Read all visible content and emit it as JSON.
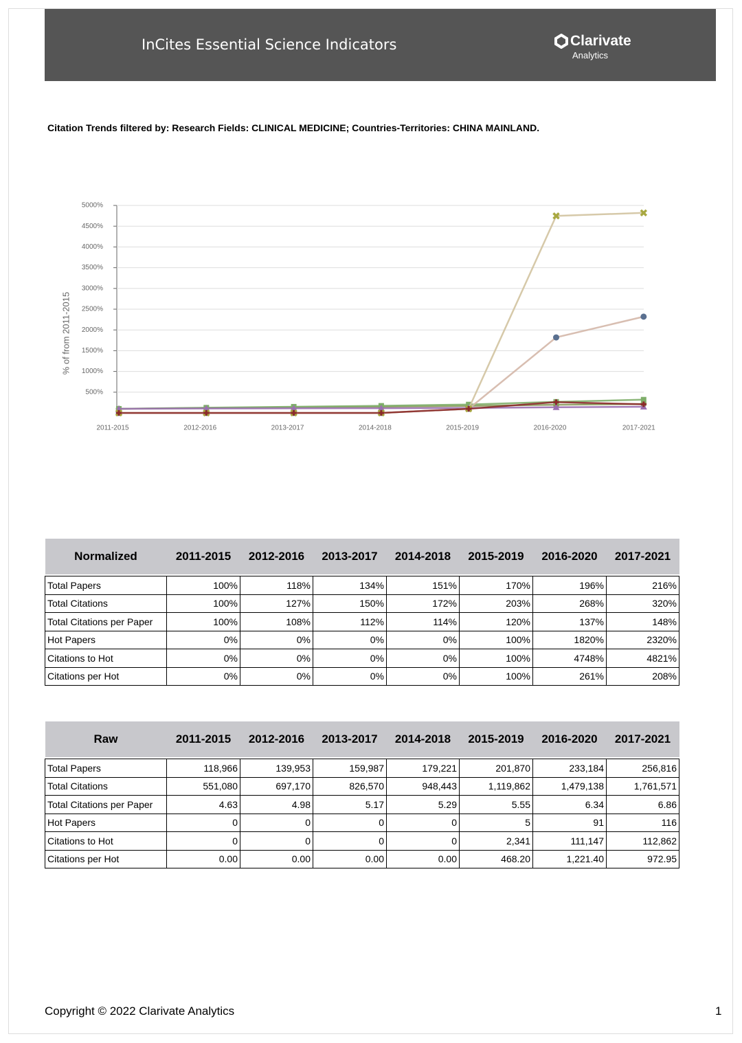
{
  "header": {
    "title": "InCites Essential Science Indicators",
    "logo": "Clarivate",
    "logo_sub": "Analytics"
  },
  "filter_text": "Citation Trends filtered by:  Research Fields: CLINICAL MEDICINE;  Countries-Territories: CHINA MAINLAND.",
  "chart_data": {
    "type": "line",
    "y_label": "% of from 2011-2015",
    "categories": [
      "2011-2015",
      "2012-2016",
      "2013-2017",
      "2014-2018",
      "2015-2019",
      "2016-2020",
      "2017-2021"
    ],
    "ylim": [
      0,
      5000
    ],
    "yticks": [
      {
        "value": 500,
        "label": "500%"
      },
      {
        "value": 1000,
        "label": "1000%"
      },
      {
        "value": 1500,
        "label": "1500%"
      },
      {
        "value": 2000,
        "label": "2000%"
      },
      {
        "value": 2500,
        "label": "2500%"
      },
      {
        "value": 3000,
        "label": "3000%"
      },
      {
        "value": 3500,
        "label": "3500%"
      },
      {
        "value": 4000,
        "label": "4000%"
      },
      {
        "value": 4500,
        "label": "4500%"
      },
      {
        "value": 5000,
        "label": "5000%"
      }
    ],
    "grid": true,
    "series": [
      {
        "color": "#8a9a5b",
        "marker": "circle",
        "values": [
          100,
          118,
          134,
          151,
          170,
          196,
          216
        ]
      },
      {
        "color": "#7fae6a",
        "marker": "square",
        "values": [
          100,
          127,
          150,
          172,
          203,
          268,
          320
        ]
      },
      {
        "color": "#9b6fb0",
        "marker": "triangle",
        "values": [
          100,
          108,
          112,
          114,
          120,
          137,
          148
        ]
      },
      {
        "color": "#d4b7a8",
        "marker": "circle",
        "marker_color": "#5a7090",
        "values": [
          0,
          0,
          0,
          0,
          100,
          1820,
          2320
        ]
      },
      {
        "color": "#d2c3a0",
        "marker": "x",
        "marker_color": "#a8a840",
        "values": [
          0,
          0,
          0,
          0,
          100,
          4748,
          4821
        ]
      },
      {
        "color": "#8b2a2a",
        "marker": "cross",
        "values": [
          0,
          0,
          0,
          0,
          100,
          261,
          208
        ]
      }
    ]
  },
  "normalized": {
    "header": [
      "Normalized",
      "2011-2015",
      "2012-2016",
      "2013-2017",
      "2014-2018",
      "2015-2019",
      "2016-2020",
      "2017-2021"
    ],
    "rows": [
      [
        "Total Papers",
        "100%",
        "118%",
        "134%",
        "151%",
        "170%",
        "196%",
        "216%"
      ],
      [
        "Total Citations",
        "100%",
        "127%",
        "150%",
        "172%",
        "203%",
        "268%",
        "320%"
      ],
      [
        "Total Citations per Paper",
        "100%",
        "108%",
        "112%",
        "114%",
        "120%",
        "137%",
        "148%"
      ],
      [
        "Hot Papers",
        "0%",
        "0%",
        "0%",
        "0%",
        "100%",
        "1820%",
        "2320%"
      ],
      [
        "Citations to Hot",
        "0%",
        "0%",
        "0%",
        "0%",
        "100%",
        "4748%",
        "4821%"
      ],
      [
        "Citations per Hot",
        "0%",
        "0%",
        "0%",
        "0%",
        "100%",
        "261%",
        "208%"
      ]
    ]
  },
  "raw": {
    "header": [
      "Raw",
      "2011-2015",
      "2012-2016",
      "2013-2017",
      "2014-2018",
      "2015-2019",
      "2016-2020",
      "2017-2021"
    ],
    "rows": [
      [
        "Total Papers",
        "118,966",
        "139,953",
        "159,987",
        "179,221",
        "201,870",
        "233,184",
        "256,816"
      ],
      [
        "Total Citations",
        "551,080",
        "697,170",
        "826,570",
        "948,443",
        "1,119,862",
        "1,479,138",
        "1,761,571"
      ],
      [
        "Total Citations per Paper",
        "4.63",
        "4.98",
        "5.17",
        "5.29",
        "5.55",
        "6.34",
        "6.86"
      ],
      [
        "Hot Papers",
        "0",
        "0",
        "0",
        "0",
        "5",
        "91",
        "116"
      ],
      [
        "Citations to Hot",
        "0",
        "0",
        "0",
        "0",
        "2,341",
        "111,147",
        "112,862"
      ],
      [
        "Citations per Hot",
        "0.00",
        "0.00",
        "0.00",
        "0.00",
        "468.20",
        "1,221.40",
        "972.95"
      ]
    ]
  },
  "footer": {
    "copyright": "Copyright © 2022 Clarivate Analytics",
    "page": "1"
  }
}
